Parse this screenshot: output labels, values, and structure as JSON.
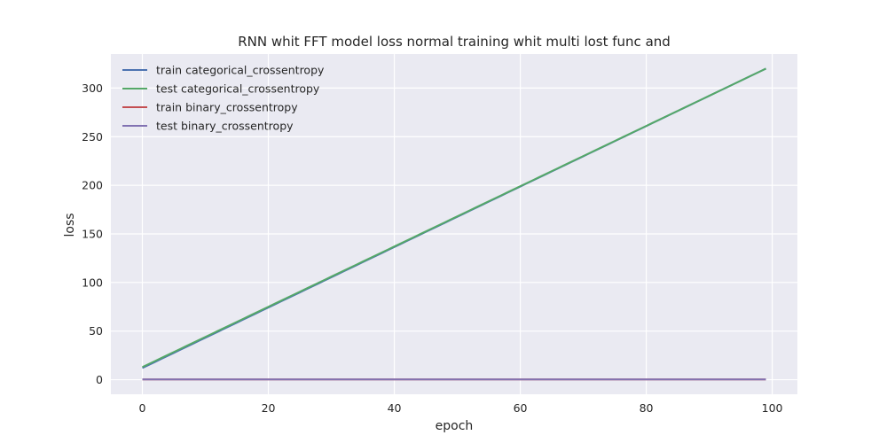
{
  "chart_data": {
    "type": "line",
    "title": "RNN whit FFT model loss normal training whit multi lost func and",
    "xlabel": "epoch",
    "ylabel": "loss",
    "xlim": [
      -5,
      104
    ],
    "ylim": [
      -15,
      335
    ],
    "xticks": [
      0,
      20,
      40,
      60,
      80,
      100
    ],
    "yticks": [
      0,
      50,
      100,
      150,
      200,
      250,
      300
    ],
    "grid": true,
    "legend_position": "top-left",
    "background_color": "#eaeaf2",
    "grid_color": "#ffffff",
    "series": [
      {
        "name": "train categorical_crossentropy",
        "color": "#4c72b0",
        "x_start": 0,
        "x_end": 99,
        "y_start": 12,
        "y_end": 320
      },
      {
        "name": "test categorical_crossentropy",
        "color": "#55a868",
        "x_start": 0,
        "x_end": 99,
        "y_start": 13,
        "y_end": 320
      },
      {
        "name": "train binary_crossentropy",
        "color": "#c44e52",
        "x_start": 0,
        "x_end": 99,
        "y_start": 0.3,
        "y_end": 0.3
      },
      {
        "name": "test binary_crossentropy",
        "color": "#8172b2",
        "x_start": 0,
        "x_end": 99,
        "y_start": 0.3,
        "y_end": 0.3
      }
    ]
  }
}
